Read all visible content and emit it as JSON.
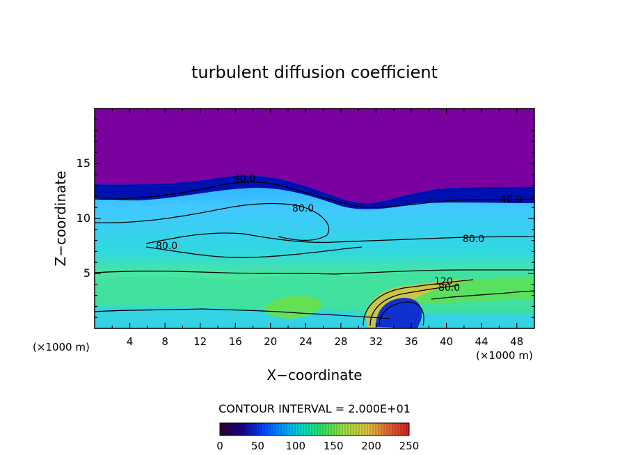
{
  "chart_data": {
    "type": "heatmap",
    "title": "turbulent diffusion coefficient",
    "xlabel": "X−coordinate",
    "ylabel": "Z−coordinate",
    "x_unit_left": "(×1000 m)",
    "x_unit_right": "(×1000 m)",
    "xlim": [
      0,
      50
    ],
    "ylim": [
      0,
      20
    ],
    "xticks": [
      4,
      8,
      12,
      16,
      20,
      24,
      28,
      32,
      36,
      40,
      44,
      48
    ],
    "yticks": [
      5,
      10,
      15
    ],
    "contour_interval_text": "CONTOUR INTERVAL = 2.000E+01",
    "contour_labels": [
      {
        "text": "40.0",
        "x": 17.2,
        "z": 13.7
      },
      {
        "text": "40.0",
        "x": 47.2,
        "z": 11.7
      },
      {
        "text": "80.0",
        "x": 24.0,
        "z": 10.8
      },
      {
        "text": "80.0",
        "x": 41.2,
        "z": 8.2
      },
      {
        "text": "80.0",
        "x": 8.5,
        "z": 7.4
      },
      {
        "text": "120",
        "x": 39.0,
        "z": 4.2
      },
      {
        "text": "80.0",
        "x": 40.3,
        "z": 3.8
      }
    ],
    "colorbar": {
      "min": 0,
      "max": 250,
      "tick_labels": [
        "0",
        "50",
        "100",
        "150",
        "200",
        "250"
      ],
      "colors": [
        "#300030",
        "#1a0088",
        "#0040ff",
        "#00a0ff",
        "#00e0c0",
        "#30e060",
        "#a0e040",
        "#e0c040",
        "#e06030",
        "#d02020"
      ]
    },
    "field_colors": {
      "upper_layer": "#7a00a0",
      "inversion_band": "#0010b0",
      "mid_layer": "#40c8ff",
      "lower_layer": "#30e0a0",
      "surface_band": "#30e080"
    }
  }
}
